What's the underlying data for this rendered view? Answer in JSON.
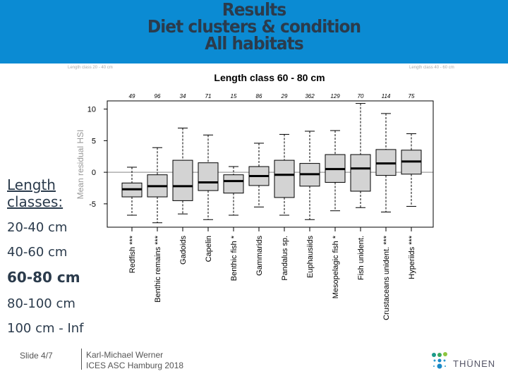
{
  "slide": {
    "title_lines": [
      "Results",
      "Diet clusters & condition",
      "All habitats"
    ],
    "background_labels": [
      "Length class 20 - 40 cm",
      "Length class 40 - 60 cm"
    ],
    "length_classes_heading": [
      "Length",
      "classes:"
    ],
    "length_classes": [
      "20-40 cm",
      "40-60 cm",
      "60-80 cm",
      "80-100 cm",
      "100 cm - Inf"
    ],
    "active_class": "60-80 cm",
    "footer": {
      "slide": "Slide 4/7",
      "author": "Karl-Michael Werner",
      "event": "ICES ASC Hamburg 2018"
    },
    "logo": "THÜNEN",
    "header_color": "#0b8bd3"
  },
  "chart_data": {
    "type": "boxplot",
    "title": "Length class 60 - 80 cm",
    "ylabel": "Mean residual HSI",
    "xlabel": "",
    "ylim": [
      -8.7,
      11.3
    ],
    "yticks": [
      10,
      5,
      0,
      -5
    ],
    "reference_line": 0,
    "box_color": "#d3d3d3",
    "categories": [
      "Redfish ***",
      "Benthic remains ***",
      "Gadoids",
      "Capelin",
      "Benthic fish *",
      "Gammarids",
      "Pandalus sp.",
      "Euphausiids",
      "Mesopelagic fish *",
      "Fish unident.",
      "Crustaceans unident. ***",
      "Hyperiids ***"
    ],
    "n": [
      "49",
      "96",
      "34",
      "71",
      "15",
      "86",
      "29",
      "362",
      "129",
      "70",
      "114",
      "75"
    ],
    "stats": [
      {
        "min": -6.8,
        "q1": -3.9,
        "median": -2.7,
        "q3": -1.7,
        "max": 0.8
      },
      {
        "min": -8.0,
        "q1": -3.9,
        "median": -2.2,
        "q3": -0.4,
        "max": 3.9
      },
      {
        "min": -6.6,
        "q1": -4.5,
        "median": -2.2,
        "q3": 1.9,
        "max": 7.0
      },
      {
        "min": -7.5,
        "q1": -2.9,
        "median": -1.6,
        "q3": 1.5,
        "max": 5.9
      },
      {
        "min": -6.8,
        "q1": -3.3,
        "median": -1.4,
        "q3": -0.4,
        "max": 0.9
      },
      {
        "min": -5.5,
        "q1": -2.1,
        "median": -0.6,
        "q3": 0.9,
        "max": 4.6
      },
      {
        "min": -6.8,
        "q1": -4.0,
        "median": -0.4,
        "q3": 1.9,
        "max": 6.0
      },
      {
        "min": -7.5,
        "q1": -2.2,
        "median": -0.3,
        "q3": 1.4,
        "max": 6.5
      },
      {
        "min": -6.1,
        "q1": -1.6,
        "median": 0.5,
        "q3": 2.8,
        "max": 6.6
      },
      {
        "min": -5.6,
        "q1": -3.0,
        "median": 0.6,
        "q3": 2.8,
        "max": 10.9
      },
      {
        "min": -6.3,
        "q1": -0.5,
        "median": 1.4,
        "q3": 3.6,
        "max": 9.3
      },
      {
        "min": -5.4,
        "q1": -0.3,
        "median": 1.7,
        "q3": 3.5,
        "max": 6.1
      }
    ]
  }
}
